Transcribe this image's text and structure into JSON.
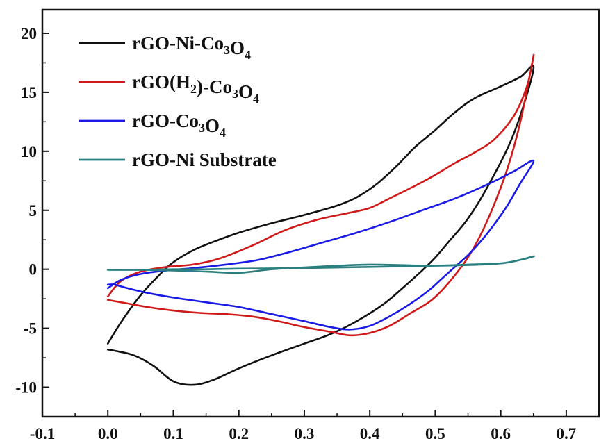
{
  "chart_data": {
    "type": "line",
    "title": "",
    "xlabel": "",
    "ylabel": "",
    "xlim": [
      -0.1,
      0.75
    ],
    "ylim": [
      -12.5,
      22
    ],
    "x_ticks": [
      -0.1,
      0.0,
      0.1,
      0.2,
      0.3,
      0.4,
      0.5,
      0.6,
      0.7
    ],
    "x_tick_labels": [
      "-0.1",
      "0.0",
      "0.1",
      "0.2",
      "0.3",
      "0.4",
      "0.5",
      "0.6",
      "0.7"
    ],
    "y_ticks": [
      -10,
      -5,
      0,
      5,
      10,
      15,
      20
    ],
    "y_tick_labels": [
      "-10",
      "-5",
      "0",
      "5",
      "10",
      "15",
      "20"
    ],
    "grid": false,
    "legend_position": "top-left",
    "series": [
      {
        "name": "rGO-Ni-Co3O4",
        "legend": {
          "pre": "rGO-Ni-Co",
          "sub1": "3",
          "mid": "O",
          "sub2": "4",
          "post": ""
        },
        "color": "#111111",
        "x": [
          0.0,
          0.02,
          0.05,
          0.08,
          0.1,
          0.13,
          0.16,
          0.2,
          0.25,
          0.3,
          0.35,
          0.38,
          0.41,
          0.44,
          0.47,
          0.5,
          0.53,
          0.56,
          0.6,
          0.63,
          0.65,
          0.62,
          0.58,
          0.55,
          0.52,
          0.5,
          0.48,
          0.45,
          0.42,
          0.38,
          0.34,
          0.3,
          0.25,
          0.2,
          0.16,
          0.13,
          0.1,
          0.07,
          0.04,
          0.01,
          0.0
        ],
        "y": [
          -6.3,
          -4.5,
          -2.2,
          -0.4,
          0.6,
          1.6,
          2.3,
          3.1,
          3.9,
          4.6,
          5.4,
          6.1,
          7.2,
          8.7,
          10.4,
          11.8,
          13.3,
          14.5,
          15.5,
          16.3,
          17.0,
          11.5,
          7.0,
          4.3,
          2.3,
          1.0,
          -0.1,
          -1.6,
          -3.0,
          -4.4,
          -5.5,
          -6.3,
          -7.3,
          -8.4,
          -9.4,
          -9.8,
          -9.5,
          -8.2,
          -7.3,
          -6.9,
          -6.8
        ]
      },
      {
        "name": "rGO(H2)-Co3O4",
        "legend": {
          "pre": "rGO(H",
          "sub1": "2",
          "mid": ")-Co",
          "sub2": "3",
          "post": "O",
          "sub3": "4"
        },
        "color": "#d01a1a",
        "x": [
          0.0,
          0.02,
          0.05,
          0.09,
          0.13,
          0.17,
          0.22,
          0.27,
          0.32,
          0.37,
          0.4,
          0.43,
          0.47,
          0.5,
          0.53,
          0.56,
          0.59,
          0.62,
          0.64,
          0.65,
          0.63,
          0.61,
          0.59,
          0.57,
          0.55,
          0.53,
          0.51,
          0.49,
          0.46,
          0.43,
          0.4,
          0.37,
          0.34,
          0.3,
          0.26,
          0.22,
          0.18,
          0.14,
          0.1,
          0.06,
          0.03,
          0.0
        ],
        "y": [
          -2.3,
          -1.0,
          -0.2,
          0.2,
          0.4,
          0.9,
          2.0,
          3.3,
          4.2,
          4.8,
          5.2,
          6.0,
          7.1,
          8.0,
          9.0,
          9.9,
          11.0,
          13.0,
          15.5,
          18.1,
          12.5,
          8.5,
          5.5,
          3.0,
          1.0,
          -0.5,
          -1.8,
          -2.8,
          -3.8,
          -4.8,
          -5.4,
          -5.6,
          -5.3,
          -4.9,
          -4.4,
          -4.0,
          -3.8,
          -3.7,
          -3.5,
          -3.2,
          -2.9,
          -2.6
        ]
      },
      {
        "name": "rGO-Co3O4",
        "legend": {
          "pre": "rGO-Co",
          "sub1": "3",
          "mid": "O",
          "sub2": "4",
          "post": ""
        },
        "color": "#1a1ae6",
        "x": [
          0.0,
          0.02,
          0.05,
          0.09,
          0.13,
          0.18,
          0.23,
          0.28,
          0.33,
          0.38,
          0.43,
          0.48,
          0.53,
          0.58,
          0.62,
          0.65,
          0.63,
          0.61,
          0.59,
          0.57,
          0.55,
          0.53,
          0.51,
          0.49,
          0.46,
          0.43,
          0.4,
          0.37,
          0.34,
          0.3,
          0.25,
          0.2,
          0.15,
          0.1,
          0.06,
          0.03,
          0.01,
          0.0
        ],
        "y": [
          -1.6,
          -0.9,
          -0.4,
          -0.1,
          0.1,
          0.4,
          0.8,
          1.5,
          2.3,
          3.1,
          4.0,
          5.0,
          6.0,
          7.2,
          8.3,
          9.2,
          7.3,
          5.4,
          3.8,
          2.4,
          1.2,
          0.2,
          -0.8,
          -1.8,
          -3.0,
          -4.0,
          -4.8,
          -5.1,
          -4.9,
          -4.4,
          -3.8,
          -3.2,
          -2.8,
          -2.4,
          -2.0,
          -1.6,
          -1.3,
          -1.3
        ]
      },
      {
        "name": "rGO-Ni Substrate",
        "legend": {
          "pre": "rGO-Ni Substrate",
          "sub1": "",
          "mid": "",
          "sub2": "",
          "post": ""
        },
        "color": "#2a8080",
        "x": [
          0.0,
          0.05,
          0.1,
          0.15,
          0.2,
          0.3,
          0.4,
          0.5,
          0.55,
          0.6,
          0.63,
          0.65,
          0.6,
          0.5,
          0.45,
          0.4,
          0.35,
          0.3,
          0.25,
          0.2,
          0.15,
          0.1,
          0.05,
          0.0
        ],
        "y": [
          -0.05,
          -0.05,
          0.0,
          0.0,
          0.05,
          0.1,
          0.2,
          0.3,
          0.4,
          0.5,
          0.8,
          1.1,
          0.5,
          0.3,
          0.35,
          0.4,
          0.3,
          0.15,
          0.0,
          -0.3,
          -0.2,
          -0.1,
          -0.05,
          -0.05
        ]
      }
    ]
  }
}
